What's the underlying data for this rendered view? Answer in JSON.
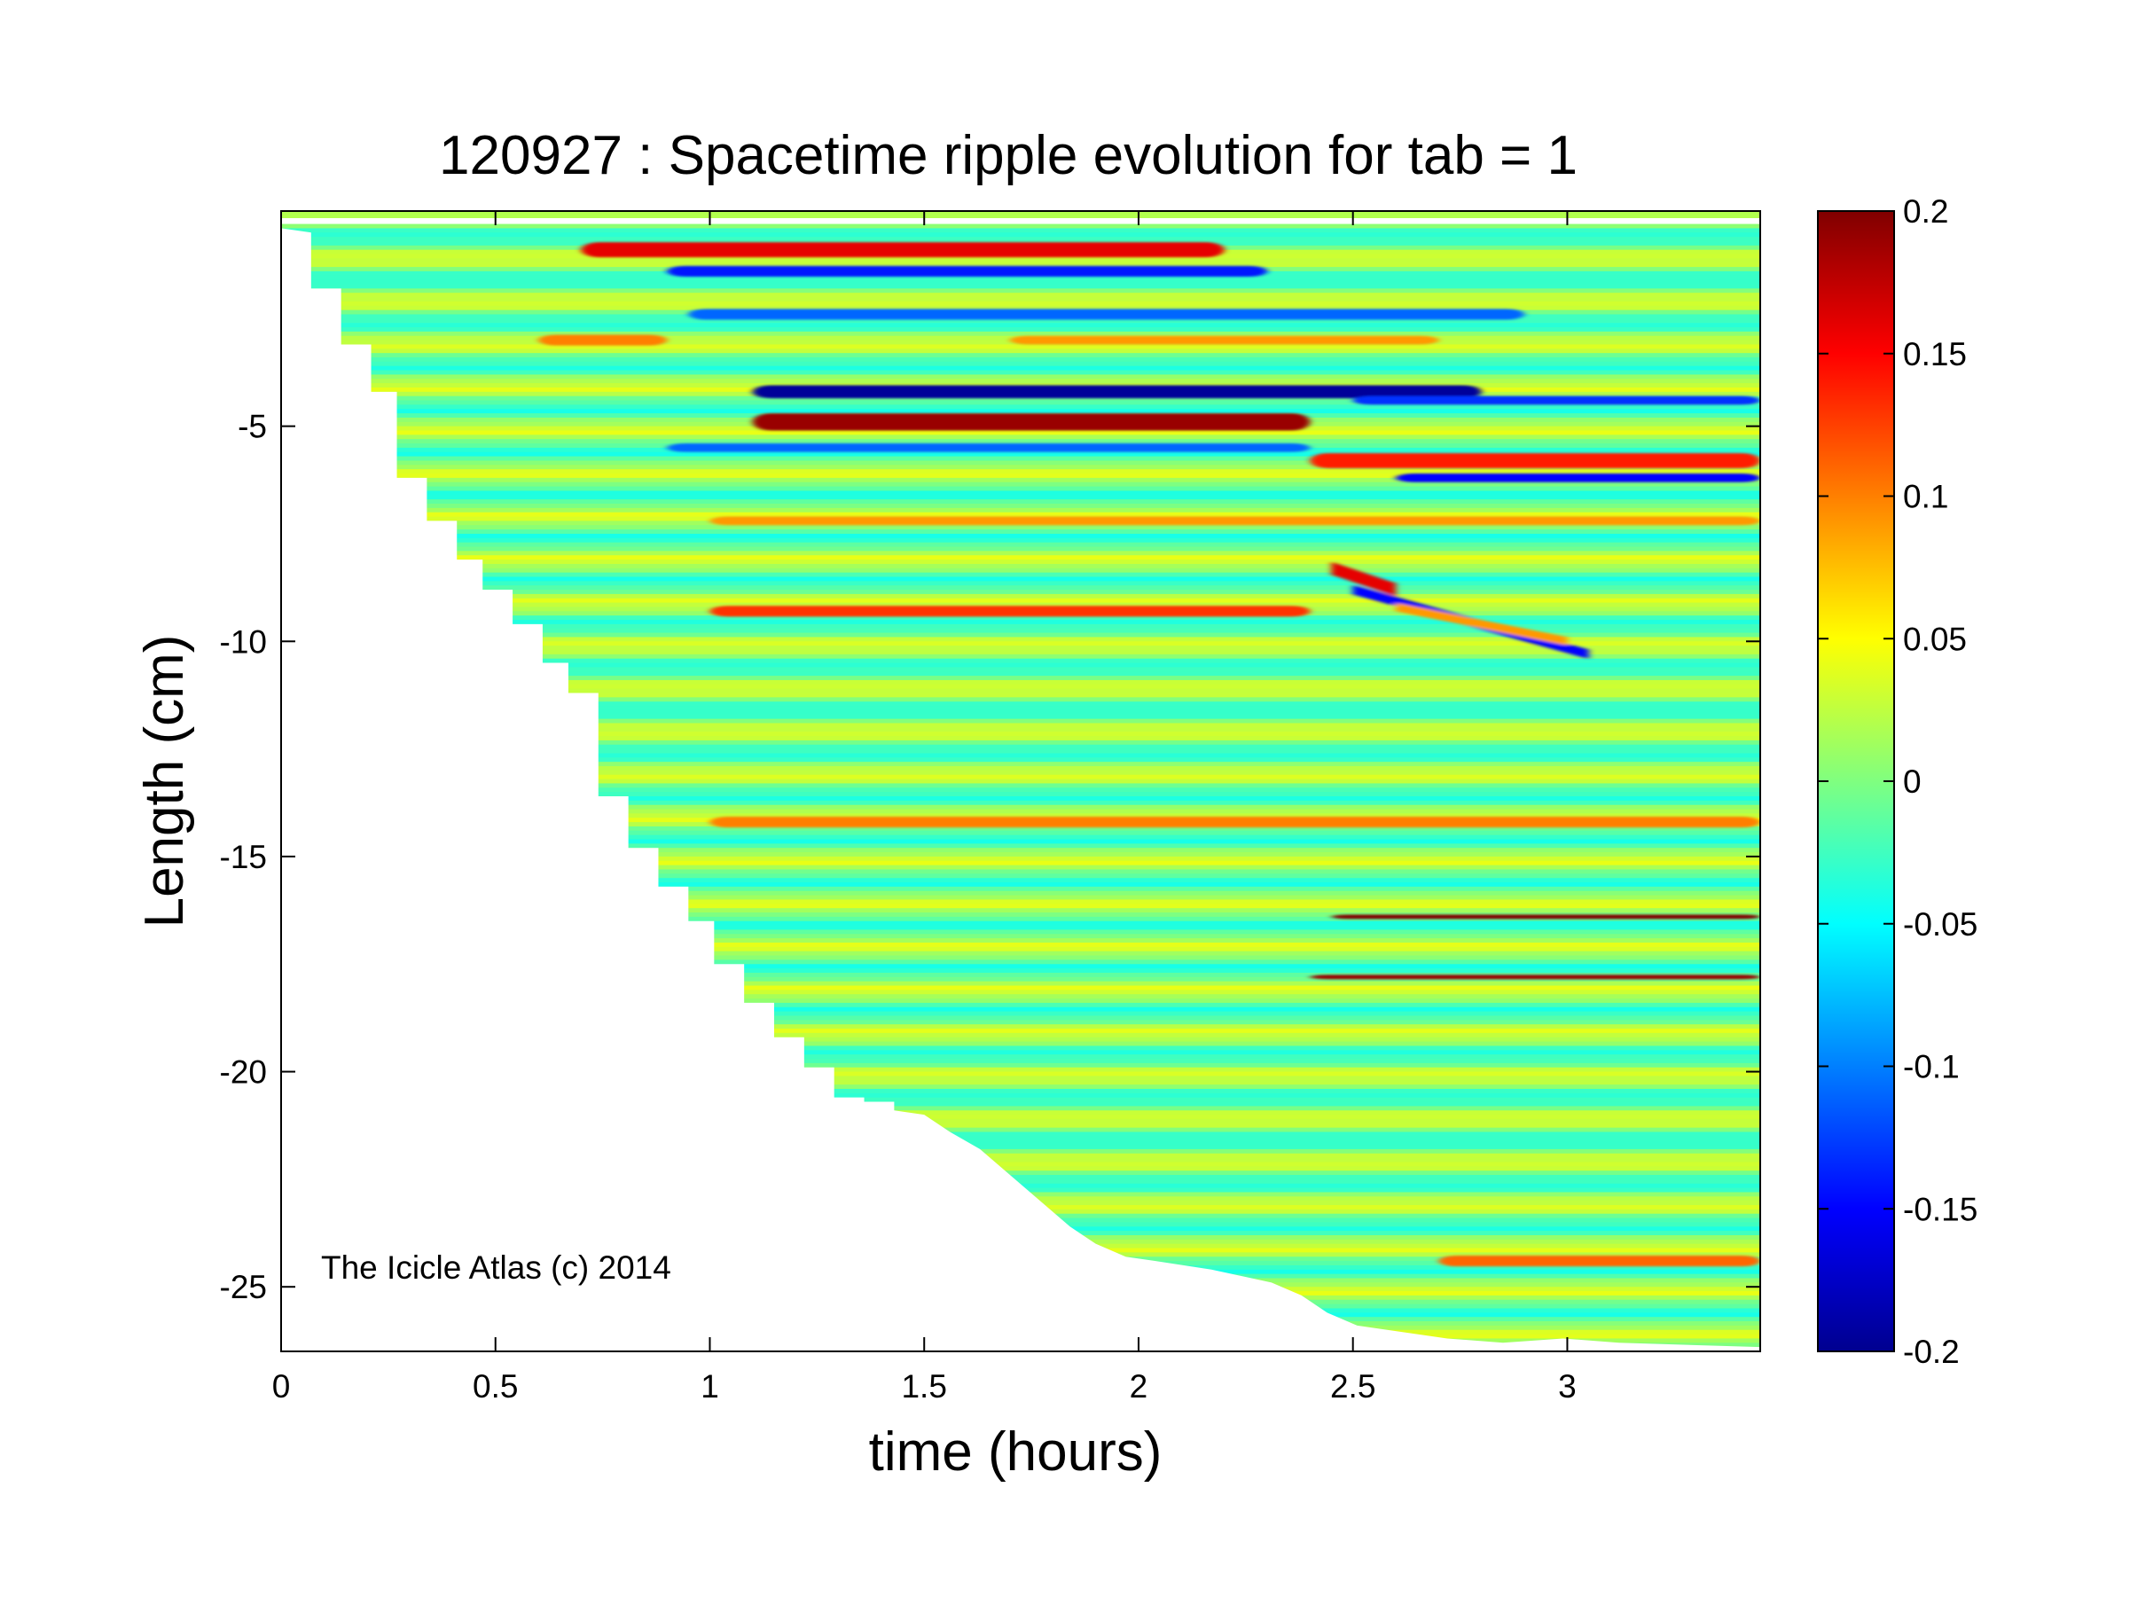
{
  "chart_data": {
    "type": "heatmap",
    "title": "120927 : Spacetime ripple evolution for tab = 1",
    "xlabel": "time (hours)",
    "ylabel": "Length (cm)",
    "xlim": [
      0,
      3.45
    ],
    "ylim": [
      -26.5,
      0
    ],
    "xticks": [
      0,
      0.5,
      1,
      1.5,
      2,
      2.5,
      3
    ],
    "xtick_labels": [
      "0",
      "0.5",
      "1",
      "1.5",
      "2",
      "2.5",
      "3"
    ],
    "yticks": [
      -5,
      -10,
      -15,
      -20,
      -25
    ],
    "ytick_labels": [
      "-5",
      "-10",
      "-15",
      "-20",
      "-25"
    ],
    "colorbar": {
      "colormap": "jet",
      "clim": [
        -0.2,
        0.2
      ],
      "ticks": [
        0.2,
        0.15,
        0.1,
        0.05,
        0,
        -0.05,
        -0.1,
        -0.15,
        -0.2
      ],
      "tick_labels": [
        "0.2",
        "0.15",
        "0.1",
        "0.05",
        "0",
        "-0.05",
        "-0.1",
        "-0.15",
        "-0.2"
      ]
    },
    "grid": false,
    "annotation": "The Icicle Atlas (c) 2014",
    "front_boundary": [
      {
        "t": 0.0,
        "L": -0.4
      },
      {
        "t": 0.07,
        "L": -0.5
      },
      {
        "t": 0.07,
        "L": -1.8
      },
      {
        "t": 0.14,
        "L": -1.8
      },
      {
        "t": 0.14,
        "L": -3.1
      },
      {
        "t": 0.21,
        "L": -3.1
      },
      {
        "t": 0.21,
        "L": -4.2
      },
      {
        "t": 0.27,
        "L": -4.2
      },
      {
        "t": 0.27,
        "L": -6.2
      },
      {
        "t": 0.34,
        "L": -6.2
      },
      {
        "t": 0.34,
        "L": -7.2
      },
      {
        "t": 0.41,
        "L": -7.2
      },
      {
        "t": 0.41,
        "L": -8.1
      },
      {
        "t": 0.47,
        "L": -8.1
      },
      {
        "t": 0.47,
        "L": -8.8
      },
      {
        "t": 0.54,
        "L": -8.8
      },
      {
        "t": 0.54,
        "L": -9.6
      },
      {
        "t": 0.61,
        "L": -9.6
      },
      {
        "t": 0.61,
        "L": -10.5
      },
      {
        "t": 0.67,
        "L": -10.5
      },
      {
        "t": 0.67,
        "L": -11.2
      },
      {
        "t": 0.74,
        "L": -11.2
      },
      {
        "t": 0.74,
        "L": -13.6
      },
      {
        "t": 0.81,
        "L": -13.6
      },
      {
        "t": 0.81,
        "L": -14.8
      },
      {
        "t": 0.88,
        "L": -14.8
      },
      {
        "t": 0.88,
        "L": -15.7
      },
      {
        "t": 0.95,
        "L": -15.7
      },
      {
        "t": 0.95,
        "L": -16.5
      },
      {
        "t": 1.01,
        "L": -16.5
      },
      {
        "t": 1.01,
        "L": -17.5
      },
      {
        "t": 1.08,
        "L": -17.5
      },
      {
        "t": 1.08,
        "L": -18.4
      },
      {
        "t": 1.15,
        "L": -18.4
      },
      {
        "t": 1.15,
        "L": -19.2
      },
      {
        "t": 1.22,
        "L": -19.2
      },
      {
        "t": 1.22,
        "L": -19.9
      },
      {
        "t": 1.29,
        "L": -19.9
      },
      {
        "t": 1.29,
        "L": -20.6
      },
      {
        "t": 1.36,
        "L": -20.6
      },
      {
        "t": 1.36,
        "L": -20.7
      },
      {
        "t": 1.43,
        "L": -20.7
      },
      {
        "t": 1.43,
        "L": -20.9
      },
      {
        "t": 1.5,
        "L": -21.0
      },
      {
        "t": 1.56,
        "L": -21.4
      },
      {
        "t": 1.63,
        "L": -21.8
      },
      {
        "t": 1.7,
        "L": -22.4
      },
      {
        "t": 1.77,
        "L": -23.0
      },
      {
        "t": 1.84,
        "L": -23.6
      },
      {
        "t": 1.9,
        "L": -24.0
      },
      {
        "t": 1.97,
        "L": -24.3
      },
      {
        "t": 2.04,
        "L": -24.4
      },
      {
        "t": 2.17,
        "L": -24.6
      },
      {
        "t": 2.31,
        "L": -24.9
      },
      {
        "t": 2.38,
        "L": -25.2
      },
      {
        "t": 2.44,
        "L": -25.6
      },
      {
        "t": 2.51,
        "L": -25.9
      },
      {
        "t": 2.58,
        "L": -26.0
      },
      {
        "t": 2.72,
        "L": -26.2
      },
      {
        "t": 2.85,
        "L": -26.3
      },
      {
        "t": 2.99,
        "L": -26.2
      },
      {
        "t": 3.12,
        "L": -26.3
      },
      {
        "t": 3.45,
        "L": -26.4
      }
    ],
    "background_bands": {
      "L_start": -0.3,
      "L_end": -26.5,
      "period": 1.0,
      "amplitude": 0.035
    },
    "features": [
      {
        "t0": 0.7,
        "t1": 2.2,
        "L": -0.9,
        "width": 0.35,
        "value": 0.16
      },
      {
        "t0": 0.9,
        "t1": 2.3,
        "L": -1.4,
        "width": 0.25,
        "value": -0.14
      },
      {
        "t0": 0.95,
        "t1": 2.9,
        "L": -2.4,
        "width": 0.25,
        "value": -0.11
      },
      {
        "t0": 0.6,
        "t1": 0.9,
        "L": -3.0,
        "width": 0.25,
        "value": 0.1
      },
      {
        "t0": 1.7,
        "t1": 2.7,
        "L": -3.0,
        "width": 0.2,
        "value": 0.09
      },
      {
        "t0": 1.1,
        "t1": 2.8,
        "L": -4.2,
        "width": 0.3,
        "value": -0.19
      },
      {
        "t0": 1.1,
        "t1": 2.4,
        "L": -4.9,
        "width": 0.4,
        "value": 0.19
      },
      {
        "t0": 0.9,
        "t1": 2.4,
        "L": -5.5,
        "width": 0.2,
        "value": -0.11
      },
      {
        "t0": 2.5,
        "t1": 3.45,
        "L": -4.4,
        "width": 0.2,
        "value": -0.13
      },
      {
        "t0": 2.4,
        "t1": 3.45,
        "L": -5.8,
        "width": 0.35,
        "value": 0.14
      },
      {
        "t0": 2.6,
        "t1": 3.45,
        "L": -6.2,
        "width": 0.2,
        "value": -0.15
      },
      {
        "t0": 1.0,
        "t1": 3.45,
        "L": -7.2,
        "width": 0.2,
        "value": 0.09
      },
      {
        "t0": 1.0,
        "t1": 2.4,
        "L": -9.3,
        "width": 0.25,
        "value": 0.13
      },
      {
        "t0": 1.0,
        "t1": 3.45,
        "L": -14.2,
        "width": 0.25,
        "value": 0.1
      },
      {
        "t0": 2.45,
        "t1": 3.45,
        "L": -16.4,
        "width": 0.1,
        "value": 0.2
      },
      {
        "t0": 2.4,
        "t1": 3.45,
        "L": -17.8,
        "width": 0.1,
        "value": 0.19
      },
      {
        "t0": 2.7,
        "t1": 3.45,
        "L": -24.4,
        "width": 0.25,
        "value": 0.11
      }
    ],
    "diagonal_features": [
      {
        "t0": 2.45,
        "L0": -8.3,
        "t1": 2.6,
        "L1": -8.8,
        "width": 0.3,
        "value": 0.16
      },
      {
        "t0": 2.5,
        "L0": -8.8,
        "t1": 3.05,
        "L1": -10.3,
        "width": 0.22,
        "value": -0.15
      },
      {
        "t0": 2.6,
        "L0": -9.2,
        "t1": 3.0,
        "L1": -10.0,
        "width": 0.2,
        "value": 0.09
      }
    ]
  }
}
